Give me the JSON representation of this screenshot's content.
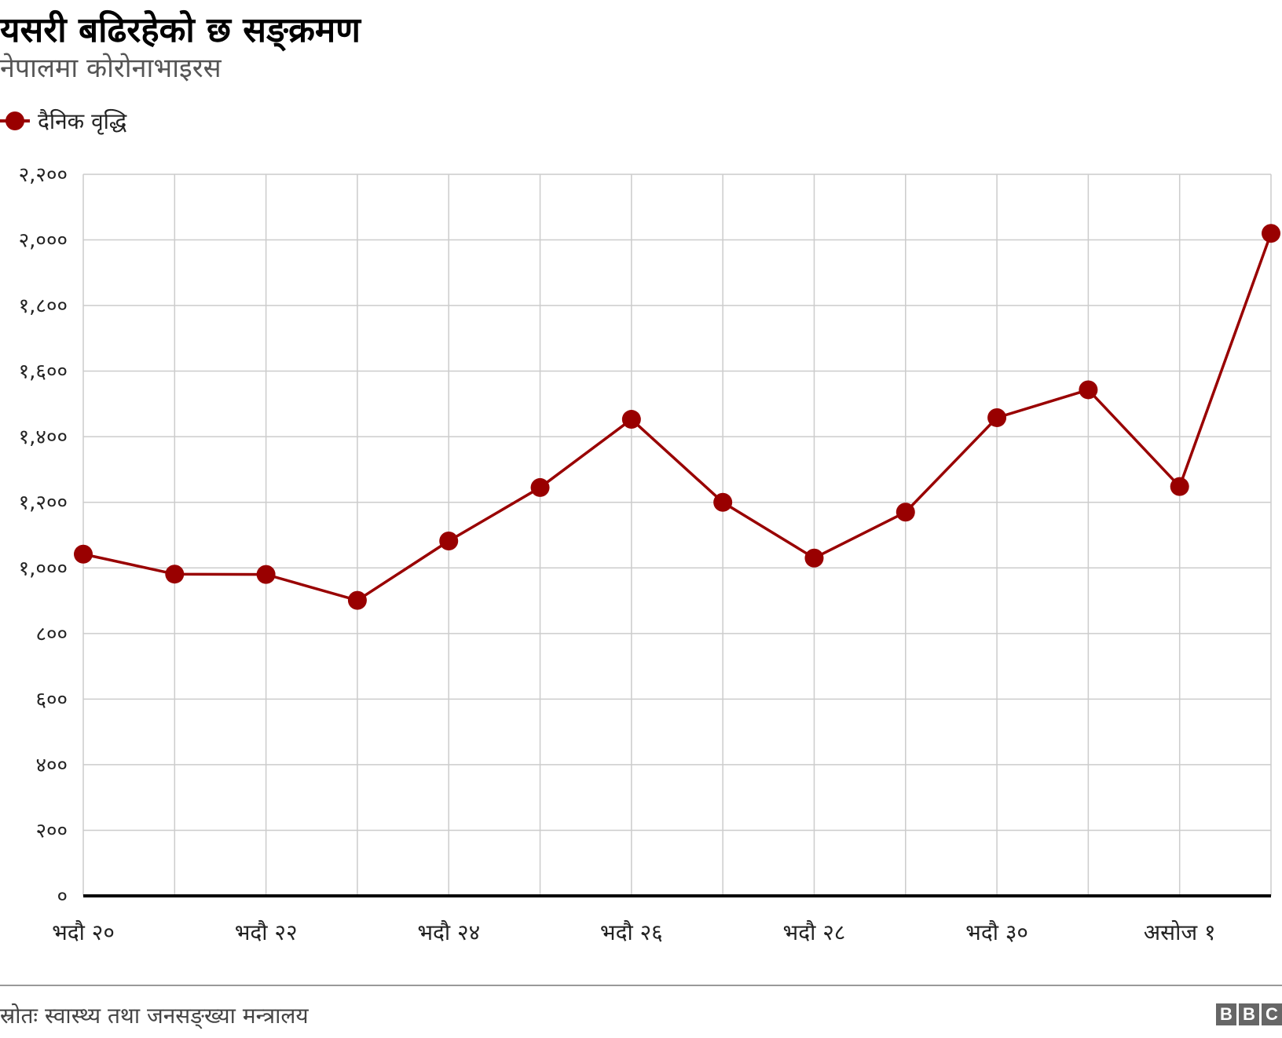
{
  "title": "यसरी बढिरहेको छ सङ्क्रमण",
  "subtitle": "नेपालमा कोरोनाभाइरस",
  "legend": {
    "label": "दैनिक वृद्धि"
  },
  "source": "स्रोतः स्वास्थ्य तथा जनसङ्ख्या मन्त्रालय",
  "logo": [
    "B",
    "B",
    "C"
  ],
  "colors": {
    "series": "#990000",
    "grid": "#cccccc",
    "axis": "#000000"
  },
  "chart_data": {
    "type": "line",
    "title": "यसरी बढिरहेको छ सङ्क्रमण",
    "subtitle": "नेपालमा कोरोनाभाइरस",
    "xlabel": "",
    "ylabel": "",
    "ylim": [
      0,
      2200
    ],
    "yticks": [
      "०",
      "२००",
      "४००",
      "६००",
      "८००",
      "१,०००",
      "१,२००",
      "१,४००",
      "१,६००",
      "१,८००",
      "२,०००",
      "२,२००"
    ],
    "xtick_labels": [
      "भदौ २०",
      "भदौ २२",
      "भदौ २४",
      "भदौ २६",
      "भदौ २८",
      "भदौ ३०",
      "असोज १"
    ],
    "xtick_positions": [
      0,
      2,
      4,
      6,
      8,
      10,
      12
    ],
    "x_points": 14,
    "grid": true,
    "legend_position": "top-left",
    "series": [
      {
        "name": "दैनिक वृद्धि",
        "values": [
          1042,
          981,
          980,
          901,
          1082,
          1245,
          1453,
          1200,
          1030,
          1170,
          1458,
          1543,
          1248,
          2020
        ]
      }
    ]
  }
}
